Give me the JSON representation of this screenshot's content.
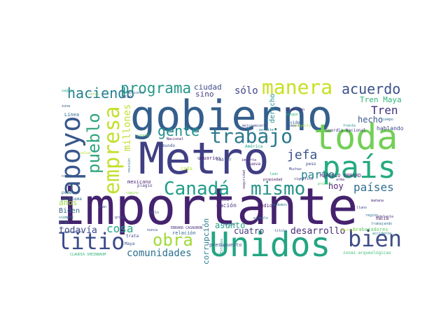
{
  "words": [
    {
      "text": "importante",
      "color": "#45226e"
    },
    {
      "text": "Metro",
      "color": "#403f84"
    },
    {
      "text": "gobierno",
      "color": "#345f8c"
    },
    {
      "text": "Unidos",
      "color": "#23a583"
    },
    {
      "text": "toda",
      "color": "#73cf56"
    },
    {
      "text": "país",
      "color": "#26aa81"
    },
    {
      "text": "apoyo",
      "color": "#38578c"
    },
    {
      "text": "Canadá",
      "color": "#1f9d89"
    },
    {
      "text": "mismo",
      "color": "#269289"
    },
    {
      "text": "litio",
      "color": "#3b4a8b"
    },
    {
      "text": "bien",
      "color": "#3e4c8a"
    },
    {
      "text": "empresa",
      "color": "#c4df2d"
    },
    {
      "text": "trabajo",
      "color": "#2c798e"
    },
    {
      "text": "manera",
      "color": "#c7e021"
    },
    {
      "text": "pueblo",
      "color": "#2fa47e"
    },
    {
      "text": "obra",
      "color": "#a0da39"
    },
    {
      "text": "acuerdo",
      "color": "#3b528b"
    },
    {
      "text": "programa",
      "color": "#27978b"
    },
    {
      "text": "haciendo",
      "color": "#237f8e"
    },
    {
      "text": "gente",
      "color": "#208f8b"
    },
    {
      "text": "millones",
      "color": "#c4e034"
    },
    {
      "text": "países",
      "color": "#2f6e8e"
    },
    {
      "text": "Tren",
      "color": "#42307f"
    },
    {
      "text": "jefa",
      "color": "#3d538b"
    },
    {
      "text": "parte",
      "color": "#26838e"
    },
    {
      "text": "comunidades",
      "color": "#2b718e"
    },
    {
      "text": "cosa",
      "color": "#23a884"
    },
    {
      "text": "sólo",
      "color": "#414487"
    },
    {
      "text": "todavía",
      "color": "#3e4a89"
    },
    {
      "text": "desarrollo",
      "color": "#472977"
    },
    {
      "text": "hecho",
      "color": "#39578c"
    },
    {
      "text": "Tren Maya",
      "color": "#30b47a"
    },
    {
      "text": "corrupción",
      "color": "#2a7b8e"
    },
    {
      "text": "cuatro",
      "color": "#453781"
    },
    {
      "text": "asunto",
      "color": "#21a685"
    },
    {
      "text": "ciudad",
      "color": "#3e4c8a"
    },
    {
      "text": "sino",
      "color": "#433e85"
    },
    {
      "text": "hoy",
      "color": "#481f70"
    },
    {
      "text": "años",
      "color": "#9bd93c"
    },
    {
      "text": "Biden",
      "color": "#33638d"
    },
    {
      "text": "derecho",
      "color": "#21918c"
    },
    {
      "text": "MARCELO EBRARD",
      "color": "#46327e"
    },
    {
      "text": "hablando",
      "color": "#3f4788"
    },
    {
      "text": "Guardia Nacional",
      "color": "#443983"
    },
    {
      "text": "presupuesto",
      "color": "#3b528b"
    },
    {
      "text": "nación",
      "color": "#472d7b"
    },
    {
      "text": "mexicano",
      "color": "#482576"
    },
    {
      "text": "mejor",
      "color": "#39568c"
    },
    {
      "text": "hacia",
      "color": "#46085c"
    },
    {
      "text": "buena",
      "color": "#482878"
    },
    {
      "text": "trabajadores",
      "color": "#5ec962"
    },
    {
      "text": "zonas arqueológicas",
      "color": "#3dbc74"
    },
    {
      "text": "CLAUDIA SHEINBAUM",
      "color": "#2fb47c"
    },
    {
      "text": "Maya",
      "color": "#3b528b"
    },
    {
      "text": "cada",
      "color": "#b5de2b"
    },
    {
      "text": "trata",
      "color": "#404688"
    },
    {
      "text": "gran",
      "color": "#2d708e"
    },
    {
      "text": "poder",
      "color": "#2e6f8e"
    },
    {
      "text": "plagio",
      "color": "#453882"
    },
    {
      "text": "problema",
      "color": "#2c728e"
    },
    {
      "text": "siempre",
      "color": "#2a788e"
    },
    {
      "text": "mundo",
      "color": "#3b518b"
    },
    {
      "text": "camino",
      "color": "#8fd744"
    },
    {
      "text": "peso",
      "color": "#3f4889"
    },
    {
      "text": "hablar",
      "color": "#3c4f8a"
    },
    {
      "text": "importa",
      "color": "#472c7a"
    },
    {
      "text": "nueva",
      "color": "#482173"
    },
    {
      "text": "seguridad",
      "color": "#46317e"
    },
    {
      "text": "video",
      "color": "#355f8d"
    },
    {
      "text": "Línea",
      "color": "#31688e"
    },
    {
      "text": "zona",
      "color": "#38598c"
    },
    {
      "text": "seguir",
      "color": "#27ad81"
    },
    {
      "text": "creo",
      "color": "#404588"
    },
    {
      "text": "acciones",
      "color": "#32658e"
    },
    {
      "text": "mejoramiento",
      "color": "#3d4d8a"
    },
    {
      "text": "inversión",
      "color": "#471063"
    },
    {
      "text": "ningún",
      "color": "#34b679"
    },
    {
      "text": "tiempo",
      "color": "#2b748e"
    },
    {
      "text": "Muchas",
      "color": "#3e4989"
    },
    {
      "text": "lado",
      "color": "#31b57b"
    },
    {
      "text": "significa",
      "color": "#424186"
    },
    {
      "text": "propiedad",
      "color": "#460a5d"
    },
    {
      "text": "arma",
      "color": "#482475"
    },
    {
      "text": "frente",
      "color": "#228b8d"
    },
    {
      "text": "mañana",
      "color": "#472a7a"
    },
    {
      "text": "región",
      "color": "#2c738e"
    },
    {
      "text": "adelante",
      "color": "#46337f"
    },
    {
      "text": "accidente",
      "color": "#287c8e"
    },
    {
      "text": "ejemplo",
      "color": "#2e6d8e"
    },
    {
      "text": "relación",
      "color": "#31678e"
    },
    {
      "text": "EBRARD CASAUBON",
      "color": "#472f7d"
    },
    {
      "text": "encuentro",
      "color": "#3a548c"
    },
    {
      "text": "nivel",
      "color": "#31688e"
    },
    {
      "text": "Nacional",
      "color": "#481467"
    },
    {
      "text": "América",
      "color": "#22a884"
    },
    {
      "text": "pronto",
      "color": "#5cc863"
    },
    {
      "text": "reunión",
      "color": "#2d718e"
    },
    {
      "text": "Estados",
      "color": "#23898e"
    },
    {
      "text": "cerca",
      "color": "#7ad151"
    },
    {
      "text": "salud",
      "color": "#b8de29"
    },
    {
      "text": "permite",
      "color": "#2a768e"
    },
    {
      "text": "momento",
      "color": "#3a538b"
    },
    {
      "text": "proyecto",
      "color": "#a2da37"
    },
    {
      "text": "primero",
      "color": "#48c16e"
    },
    {
      "text": "llano",
      "color": "#3f4889"
    },
    {
      "text": "medio",
      "color": "#48186a"
    },
    {
      "text": "podemos",
      "color": "#2a778e"
    },
    {
      "text": "título",
      "color": "#355e8d"
    },
    {
      "text": "nunca",
      "color": "#3f4889"
    },
    {
      "text": "suelo",
      "color": "#38598c"
    },
    {
      "text": "plan",
      "color": "#3b528b"
    },
    {
      "text": "grupo",
      "color": "#433d84"
    },
    {
      "text": "decisión",
      "color": "#b0dd2f"
    },
    {
      "text": "trabajando",
      "color": "#2c728e"
    },
    {
      "text": "usuarios",
      "color": "#482576"
    }
  ]
}
